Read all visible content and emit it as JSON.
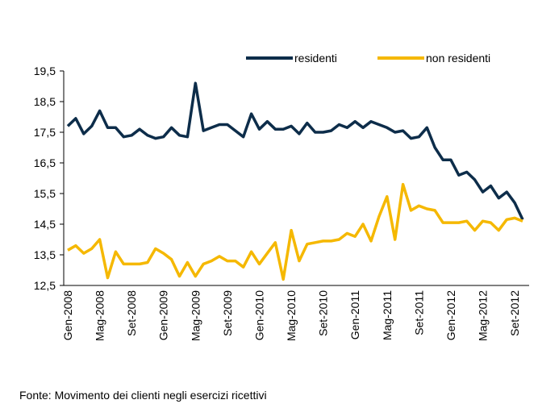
{
  "chart_data": {
    "type": "line",
    "categories": [
      "Gen-2008",
      null,
      null,
      null,
      "Mag-2008",
      null,
      null,
      null,
      "Set-2008",
      null,
      null,
      null,
      "Gen-2009",
      null,
      null,
      null,
      "Mag-2009",
      null,
      null,
      null,
      "Set-2009",
      null,
      null,
      null,
      "Gen-2010",
      null,
      null,
      null,
      "Mag-2010",
      null,
      null,
      null,
      "Set-2010",
      null,
      null,
      null,
      "Gen-2011",
      null,
      null,
      null,
      "Mag-2011",
      null,
      null,
      null,
      "Set-2011",
      null,
      null,
      null,
      "Gen-2012",
      null,
      null,
      null,
      "Mag-2012",
      null,
      null,
      null,
      "Set-2012",
      null
    ],
    "series": [
      {
        "name": "residenti",
        "color": "#0d2d4a",
        "values": [
          17.7,
          17.95,
          17.45,
          17.7,
          18.2,
          17.65,
          17.65,
          17.35,
          17.4,
          17.6,
          17.4,
          17.3,
          17.35,
          17.65,
          17.4,
          17.35,
          19.1,
          17.55,
          17.65,
          17.75,
          17.75,
          17.55,
          17.35,
          18.1,
          17.6,
          17.85,
          17.6,
          17.6,
          17.7,
          17.45,
          17.8,
          17.5,
          17.5,
          17.55,
          17.75,
          17.65,
          17.85,
          17.65,
          17.85,
          17.75,
          17.65,
          17.5,
          17.55,
          17.3,
          17.35,
          17.65,
          17.0,
          16.6,
          16.6,
          16.1,
          16.2,
          15.95,
          15.55,
          15.75,
          15.35,
          15.55,
          15.2,
          14.65
        ]
      },
      {
        "name": "non residenti",
        "color": "#f5b800",
        "values": [
          13.65,
          13.8,
          13.55,
          13.7,
          14.0,
          12.75,
          13.6,
          13.2,
          13.2,
          13.2,
          13.25,
          13.7,
          13.55,
          13.35,
          12.8,
          13.25,
          12.8,
          13.2,
          13.3,
          13.45,
          13.3,
          13.3,
          13.1,
          13.6,
          13.2,
          13.55,
          13.9,
          12.7,
          14.3,
          13.3,
          13.85,
          13.9,
          13.95,
          13.95,
          14.0,
          14.2,
          14.1,
          14.5,
          13.95,
          14.75,
          15.4,
          14.0,
          15.8,
          14.95,
          15.1,
          15.0,
          14.95,
          14.55,
          14.55,
          14.55,
          14.6,
          14.3,
          14.6,
          14.55,
          14.3,
          14.65,
          14.7,
          14.6
        ]
      }
    ],
    "ylim": [
      12.5,
      19.5
    ],
    "yticks": [
      {
        "value": 12.5,
        "label": "12,5"
      },
      {
        "value": 13.5,
        "label": "13,5"
      },
      {
        "value": 14.5,
        "label": "14,5"
      },
      {
        "value": 15.5,
        "label": "15,5"
      },
      {
        "value": 16.5,
        "label": "16,5"
      },
      {
        "value": 17.5,
        "label": "17,5"
      },
      {
        "value": 18.5,
        "label": "18,5"
      },
      {
        "value": 19.5,
        "label": "19,5"
      }
    ],
    "legend": "top",
    "note": "Fonte: Movimento dei clienti negli esercizi ricettivi"
  }
}
